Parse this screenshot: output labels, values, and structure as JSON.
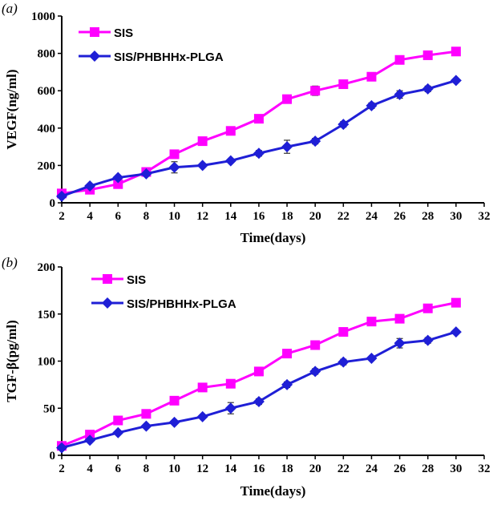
{
  "chart_data": [
    {
      "type": "line",
      "panel_label": "(a)",
      "xlabel": "Time(days)",
      "ylabel": "VEGF(ng/ml)",
      "xlim": [
        2,
        32
      ],
      "ylim": [
        0,
        1000
      ],
      "xticks": [
        2,
        4,
        6,
        8,
        10,
        12,
        14,
        16,
        18,
        20,
        22,
        24,
        26,
        28,
        30,
        32
      ],
      "yticks": [
        0,
        200,
        400,
        600,
        800,
        1000
      ],
      "legend_position": "top-left",
      "grid": false,
      "x": [
        2,
        4,
        6,
        8,
        10,
        12,
        14,
        16,
        18,
        20,
        22,
        24,
        26,
        28,
        30
      ],
      "series": [
        {
          "name": "SIS",
          "color": "#ff00ff",
          "marker": "square",
          "values": [
            50,
            70,
            100,
            165,
            260,
            330,
            385,
            450,
            555,
            600,
            635,
            675,
            765,
            790,
            810
          ],
          "errors": [
            0,
            0,
            0,
            0,
            0,
            0,
            0,
            0,
            0,
            25,
            0,
            0,
            0,
            0,
            0
          ]
        },
        {
          "name": "SIS/PHBHHx-PLGA",
          "color": "#1f1fd6",
          "marker": "diamond",
          "values": [
            35,
            90,
            135,
            155,
            190,
            200,
            225,
            265,
            300,
            330,
            420,
            520,
            580,
            610,
            655
          ],
          "errors": [
            0,
            0,
            0,
            0,
            30,
            0,
            0,
            15,
            35,
            15,
            15,
            15,
            20,
            15,
            0
          ]
        }
      ]
    },
    {
      "type": "line",
      "panel_label": "(b)",
      "xlabel": "Time(days)",
      "ylabel": "TGF-β(pg/ml)",
      "xlim": [
        2,
        32
      ],
      "ylim": [
        0,
        200
      ],
      "xticks": [
        2,
        4,
        6,
        8,
        10,
        12,
        14,
        16,
        18,
        20,
        22,
        24,
        26,
        28,
        30,
        32
      ],
      "yticks": [
        0,
        50,
        100,
        150,
        200
      ],
      "legend_position": "top-left",
      "grid": false,
      "x": [
        2,
        4,
        6,
        8,
        10,
        12,
        14,
        16,
        18,
        20,
        22,
        24,
        26,
        28,
        30
      ],
      "series": [
        {
          "name": "SIS",
          "color": "#ff00ff",
          "marker": "square",
          "values": [
            10,
            22,
            37,
            44,
            58,
            72,
            76,
            89,
            108,
            117,
            131,
            142,
            145,
            156,
            162
          ],
          "errors": [
            0,
            0,
            0,
            0,
            0,
            3,
            0,
            0,
            0,
            3,
            0,
            3,
            0,
            0,
            0
          ]
        },
        {
          "name": "SIS/PHBHHx-PLGA",
          "color": "#1f1fd6",
          "marker": "diamond",
          "values": [
            8,
            16,
            24,
            31,
            35,
            41,
            50,
            57,
            75,
            89,
            99,
            103,
            119,
            122,
            131
          ],
          "errors": [
            0,
            0,
            0,
            0,
            0,
            0,
            6,
            3,
            3,
            3,
            3,
            0,
            5,
            3,
            0
          ]
        }
      ]
    }
  ]
}
